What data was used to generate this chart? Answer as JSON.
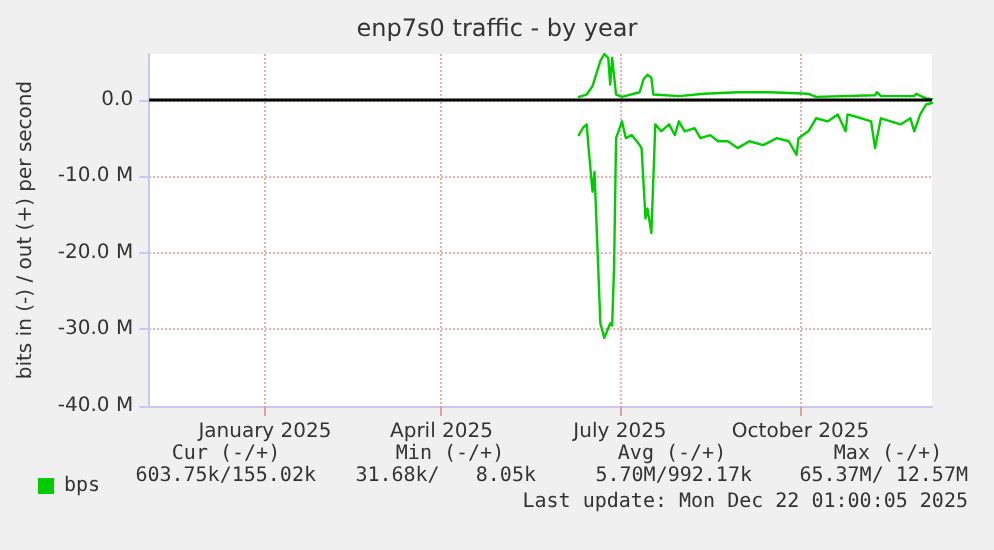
{
  "chart_data": {
    "type": "line",
    "title": "enp7s0 traffic - by year",
    "ylabel": "bits in (-) / out (+) per second",
    "xlim": [
      "2024-11-18",
      "2025-12-22T01:00"
    ],
    "xticks": [
      {
        "value": "2025-01-16",
        "label": "January 2025"
      },
      {
        "value": "2025-04-16",
        "label": "April 2025"
      },
      {
        "value": "2025-07-16",
        "label": "July 2025"
      },
      {
        "value": "2025-10-16",
        "label": "October 2025"
      }
    ],
    "ylim": [
      -40,
      6
    ],
    "yticks": [
      {
        "value": 0,
        "label": "0.0"
      },
      {
        "value": -10,
        "label": "-10.0 M"
      },
      {
        "value": -20,
        "label": "-20.0 M"
      },
      {
        "value": -30,
        "label": "-30.0 M"
      },
      {
        "value": -40,
        "label": "-40.0 M"
      }
    ],
    "grid": true,
    "legend": "bottom left",
    "marker": "none",
    "line_style": "solid",
    "ref_lines": [
      {
        "axis": "y",
        "value": 0,
        "color": "#000000"
      }
    ],
    "series": [
      {
        "name": "bps",
        "color": "#00cc00",
        "x": [
          "2025-06-25",
          "2025-06-29",
          "2025-07-02",
          "2025-07-06",
          "2025-07-08",
          "2025-07-10",
          "2025-07-11",
          "2025-07-12",
          "2025-07-14",
          "2025-07-17",
          "2025-07-26",
          "2025-07-28",
          "2025-07-30",
          "2025-08-01",
          "2025-08-02",
          "2025-08-15",
          "2025-08-28",
          "2025-09-14",
          "2025-09-30",
          "2025-10-20",
          "2025-10-24",
          "2025-11-23",
          "2025-11-24",
          "2025-11-26",
          "2025-12-13",
          "2025-12-14",
          "2025-12-19",
          "2025-12-22"
        ],
        "values": [
          0.4,
          0.7,
          1.8,
          5.1,
          6.0,
          5.5,
          2.0,
          5.5,
          0.7,
          0.4,
          1.0,
          2.7,
          3.3,
          2.9,
          0.7,
          0.5,
          0.8,
          1.0,
          1.0,
          0.8,
          0.4,
          0.6,
          1.0,
          0.5,
          0.5,
          0.8,
          0.2,
          0.1
        ]
      },
      {
        "color": "#00cc00",
        "x": [
          "2025-06-25",
          "2025-06-27",
          "2025-06-29",
          "2025-06-30",
          "2025-07-02",
          "2025-07-03",
          "2025-07-06",
          "2025-07-08",
          "2025-07-11",
          "2025-07-12",
          "2025-07-13",
          "2025-07-14",
          "2025-07-17",
          "2025-07-19",
          "2025-07-22",
          "2025-07-26",
          "2025-07-27",
          "2025-07-29",
          "2025-07-30",
          "2025-08-01",
          "2025-08-03",
          "2025-08-06",
          "2025-08-10",
          "2025-08-13",
          "2025-08-15",
          "2025-08-18",
          "2025-08-23",
          "2025-08-26",
          "2025-08-31",
          "2025-09-04",
          "2025-09-09",
          "2025-09-14",
          "2025-09-20",
          "2025-09-27",
          "2025-10-04",
          "2025-10-10",
          "2025-10-14",
          "2025-10-15",
          "2025-10-20",
          "2025-10-24",
          "2025-10-30",
          "2025-11-04",
          "2025-11-08",
          "2025-11-09",
          "2025-11-16",
          "2025-11-21",
          "2025-11-23",
          "2025-11-26",
          "2025-12-01",
          "2025-12-06",
          "2025-12-11",
          "2025-12-13",
          "2025-12-16",
          "2025-12-19",
          "2025-12-22"
        ],
        "values": [
          -4.6,
          -3.7,
          -3.2,
          -6.3,
          -12.0,
          -9.4,
          -29.2,
          -31.1,
          -29.2,
          -29.5,
          -21.6,
          -5.0,
          -2.8,
          -5.0,
          -4.6,
          -5.9,
          -6.3,
          -15.5,
          -14.2,
          -17.4,
          -3.2,
          -4.1,
          -3.2,
          -4.6,
          -2.8,
          -4.1,
          -3.7,
          -5.0,
          -4.6,
          -5.4,
          -5.4,
          -6.3,
          -5.4,
          -5.9,
          -5.0,
          -5.4,
          -7.2,
          -5.0,
          -4.1,
          -2.4,
          -2.8,
          -1.9,
          -4.1,
          -1.9,
          -2.4,
          -2.8,
          -6.3,
          -2.4,
          -2.8,
          -3.2,
          -2.4,
          -4.1,
          -1.9,
          -0.6,
          -0.4
        ]
      }
    ],
    "annotations": [
      "Cur (-/+)",
      "Min (-/+)",
      "Avg (-/+)",
      "Max (-/+)",
      "603.75k/155.02k",
      "31.68k/   8.05k",
      "5.70M/992.17k",
      "65.37M/ 12.57M",
      "Last update: Mon Dec 22 01:00:05 2025"
    ]
  }
}
